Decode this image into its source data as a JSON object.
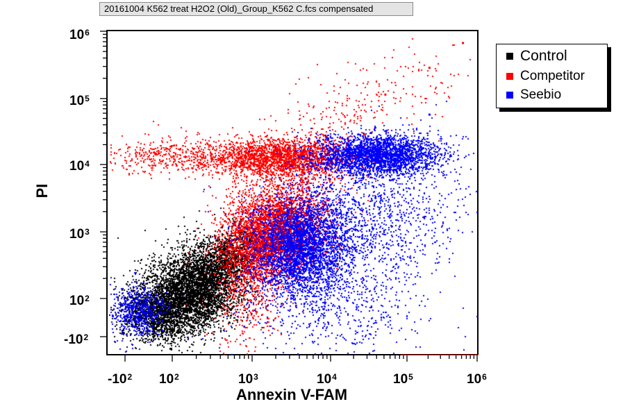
{
  "window": {
    "title": "20161004 K562 treat H2O2 (Old)_Group_K562 C.fcs compensated"
  },
  "chart_data": {
    "type": "scatter",
    "subtype": "flow-cytometry-dot-plot",
    "xlabel": "Annexin V-FAM",
    "ylabel": "PI",
    "x_scale": "biexponential",
    "y_scale": "biexponential",
    "xlim": [
      -200,
      1000000
    ],
    "ylim": [
      -200,
      1000000
    ],
    "x_ticks": [
      {
        "base": "-10",
        "exp": "2",
        "value": -100
      },
      {
        "base": "10",
        "exp": "2",
        "value": 100
      },
      {
        "base": "10",
        "exp": "3",
        "value": 1000
      },
      {
        "base": "10",
        "exp": "4",
        "value": 10000
      },
      {
        "base": "10",
        "exp": "5",
        "value": 100000
      },
      {
        "base": "10",
        "exp": "6",
        "value": 1000000
      }
    ],
    "y_ticks": [
      {
        "base": "-10",
        "exp": "2",
        "value": -100
      },
      {
        "base": "10",
        "exp": "2",
        "value": 100
      },
      {
        "base": "10",
        "exp": "3",
        "value": 1000
      },
      {
        "base": "10",
        "exp": "4",
        "value": 10000
      },
      {
        "base": "10",
        "exp": "5",
        "value": 100000
      },
      {
        "base": "10",
        "exp": "6",
        "value": 1000000
      }
    ],
    "grid": false,
    "legend_position": "top-right, outside plot",
    "series": [
      {
        "name": "Control",
        "color": "#000000",
        "points": [
          {
            "x": 150,
            "y": 120
          },
          {
            "x": 200,
            "y": 150
          },
          {
            "x": 250,
            "y": 130
          },
          {
            "x": 300,
            "y": 180
          },
          {
            "x": 120,
            "y": 90
          },
          {
            "x": 180,
            "y": 200
          },
          {
            "x": 350,
            "y": 250
          },
          {
            "x": 100,
            "y": 80
          },
          {
            "x": 400,
            "y": 300
          },
          {
            "x": 500,
            "y": 350
          },
          {
            "x": 220,
            "y": 110
          },
          {
            "x": 160,
            "y": 160
          },
          {
            "x": 280,
            "y": 140
          },
          {
            "x": 330,
            "y": 220
          },
          {
            "x": 130,
            "y": 100
          },
          {
            "x": 600,
            "y": 450
          },
          {
            "x": 700,
            "y": 600
          },
          {
            "x": 900,
            "y": 800
          },
          {
            "x": 80,
            "y": 70
          },
          {
            "x": 260,
            "y": 190
          }
        ]
      },
      {
        "name": "Competitor",
        "color": "#ff0000",
        "points": [
          {
            "x": 1500,
            "y": 13000
          },
          {
            "x": 2000,
            "y": 15000
          },
          {
            "x": 2500,
            "y": 12000
          },
          {
            "x": 3000,
            "y": 14000
          },
          {
            "x": 1000,
            "y": 11000
          },
          {
            "x": 4000,
            "y": 13000
          },
          {
            "x": 1500,
            "y": 1000
          },
          {
            "x": 2000,
            "y": 2000
          },
          {
            "x": 1200,
            "y": 700
          },
          {
            "x": 2500,
            "y": 1500
          },
          {
            "x": 3000,
            "y": 3000
          },
          {
            "x": 1000,
            "y": 500
          },
          {
            "x": 300,
            "y": 15000
          },
          {
            "x": 100,
            "y": 14000
          },
          {
            "x": 600,
            "y": 12000
          },
          {
            "x": 50000,
            "y": 120000
          },
          {
            "x": 200000,
            "y": 300000
          },
          {
            "x": 600000,
            "y": 700000
          },
          {
            "x": 5000,
            "y": 20000
          },
          {
            "x": 800,
            "y": 900
          }
        ]
      },
      {
        "name": "Seebio",
        "color": "#0000ff",
        "points": [
          {
            "x": 40000,
            "y": 14000
          },
          {
            "x": 60000,
            "y": 15000
          },
          {
            "x": 50000,
            "y": 12000
          },
          {
            "x": 80000,
            "y": 13000
          },
          {
            "x": 30000,
            "y": 16000
          },
          {
            "x": 100000,
            "y": 14000
          },
          {
            "x": 3000,
            "y": 700
          },
          {
            "x": 4000,
            "y": 900
          },
          {
            "x": 5000,
            "y": 500
          },
          {
            "x": 2500,
            "y": 600
          },
          {
            "x": 6000,
            "y": 1200
          },
          {
            "x": 3500,
            "y": 400
          },
          {
            "x": 10000,
            "y": 2000
          },
          {
            "x": 20000,
            "y": 3000
          },
          {
            "x": 15000,
            "y": 800
          },
          {
            "x": 60,
            "y": 70
          },
          {
            "x": 80,
            "y": 60
          },
          {
            "x": 50,
            "y": 90
          },
          {
            "x": 200000,
            "y": 60000
          },
          {
            "x": 8000,
            "y": 300
          }
        ]
      }
    ]
  }
}
